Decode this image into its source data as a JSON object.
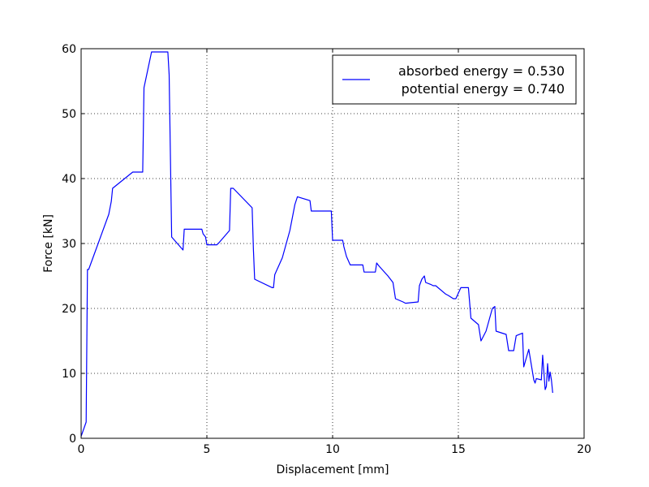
{
  "chart_data": {
    "type": "line",
    "title": "",
    "xlabel": "Displacement [mm]",
    "ylabel": "Force [kN]",
    "xlim": [
      0,
      20
    ],
    "ylim": [
      0,
      60
    ],
    "xticks": [
      "0",
      "5",
      "10",
      "15",
      "20"
    ],
    "yticks": [
      "0",
      "10",
      "20",
      "30",
      "40",
      "50",
      "60"
    ],
    "grid": true,
    "legend_position": "top-right",
    "legend": {
      "line1": "absorbed energy = 0.530",
      "line2": "potential energy = 0.740"
    },
    "series": [
      {
        "color": "#0000ff",
        "x": [
          0.0,
          0.2,
          0.25,
          0.3,
          1.1,
          1.2,
          1.25,
          2.05,
          2.1,
          2.45,
          2.5,
          2.8,
          3.0,
          3.45,
          3.5,
          3.6,
          4.05,
          4.1,
          4.15,
          4.8,
          4.85,
          4.95,
          5.0,
          5.4,
          5.5,
          5.9,
          5.95,
          6.05,
          6.8,
          6.85,
          6.9,
          7.6,
          7.65,
          7.7,
          8.0,
          8.3,
          8.5,
          8.6,
          9.1,
          9.15,
          9.95,
          10.0,
          10.4,
          10.45,
          10.55,
          10.7,
          11.2,
          11.25,
          11.7,
          11.75,
          11.85,
          12.2,
          12.4,
          12.5,
          12.8,
          12.9,
          13.4,
          13.45,
          13.55,
          13.65,
          13.7,
          13.9,
          14.0,
          14.1,
          14.5,
          14.6,
          14.8,
          14.9,
          15.1,
          15.4,
          15.5,
          15.8,
          15.9,
          16.1,
          16.35,
          16.45,
          16.5,
          16.9,
          17.0,
          17.2,
          17.3,
          17.55,
          17.6,
          17.8,
          18.0,
          18.05,
          18.1,
          18.3,
          18.35,
          18.45,
          18.5,
          18.55,
          18.6,
          18.65,
          18.7,
          18.75
        ],
        "y": [
          0.3,
          2.5,
          26.0,
          26.0,
          34.5,
          36.5,
          38.5,
          41.0,
          41.0,
          41.0,
          54.0,
          59.5,
          59.5,
          59.5,
          56.0,
          31.0,
          29.0,
          32.2,
          32.2,
          32.2,
          31.5,
          31.0,
          29.8,
          29.8,
          30.2,
          32.0,
          38.5,
          38.5,
          35.5,
          29.0,
          24.5,
          23.2,
          23.2,
          25.2,
          27.8,
          32.0,
          36.0,
          37.2,
          36.6,
          35.0,
          35.0,
          30.5,
          30.5,
          29.5,
          28.0,
          26.7,
          26.7,
          25.6,
          25.6,
          27.0,
          26.5,
          25.0,
          24.0,
          21.5,
          21.0,
          20.8,
          21.0,
          23.5,
          24.5,
          25.0,
          24.0,
          23.7,
          23.5,
          23.5,
          22.2,
          22.0,
          21.5,
          21.5,
          23.2,
          23.2,
          18.5,
          17.5,
          15.0,
          16.5,
          20.0,
          20.3,
          16.5,
          16.0,
          13.5,
          13.5,
          15.8,
          16.2,
          11.0,
          13.7,
          9.0,
          8.5,
          9.2,
          9.0,
          12.8,
          7.5,
          8.0,
          11.5,
          8.8,
          10.2,
          9.0,
          7.0
        ]
      }
    ]
  }
}
